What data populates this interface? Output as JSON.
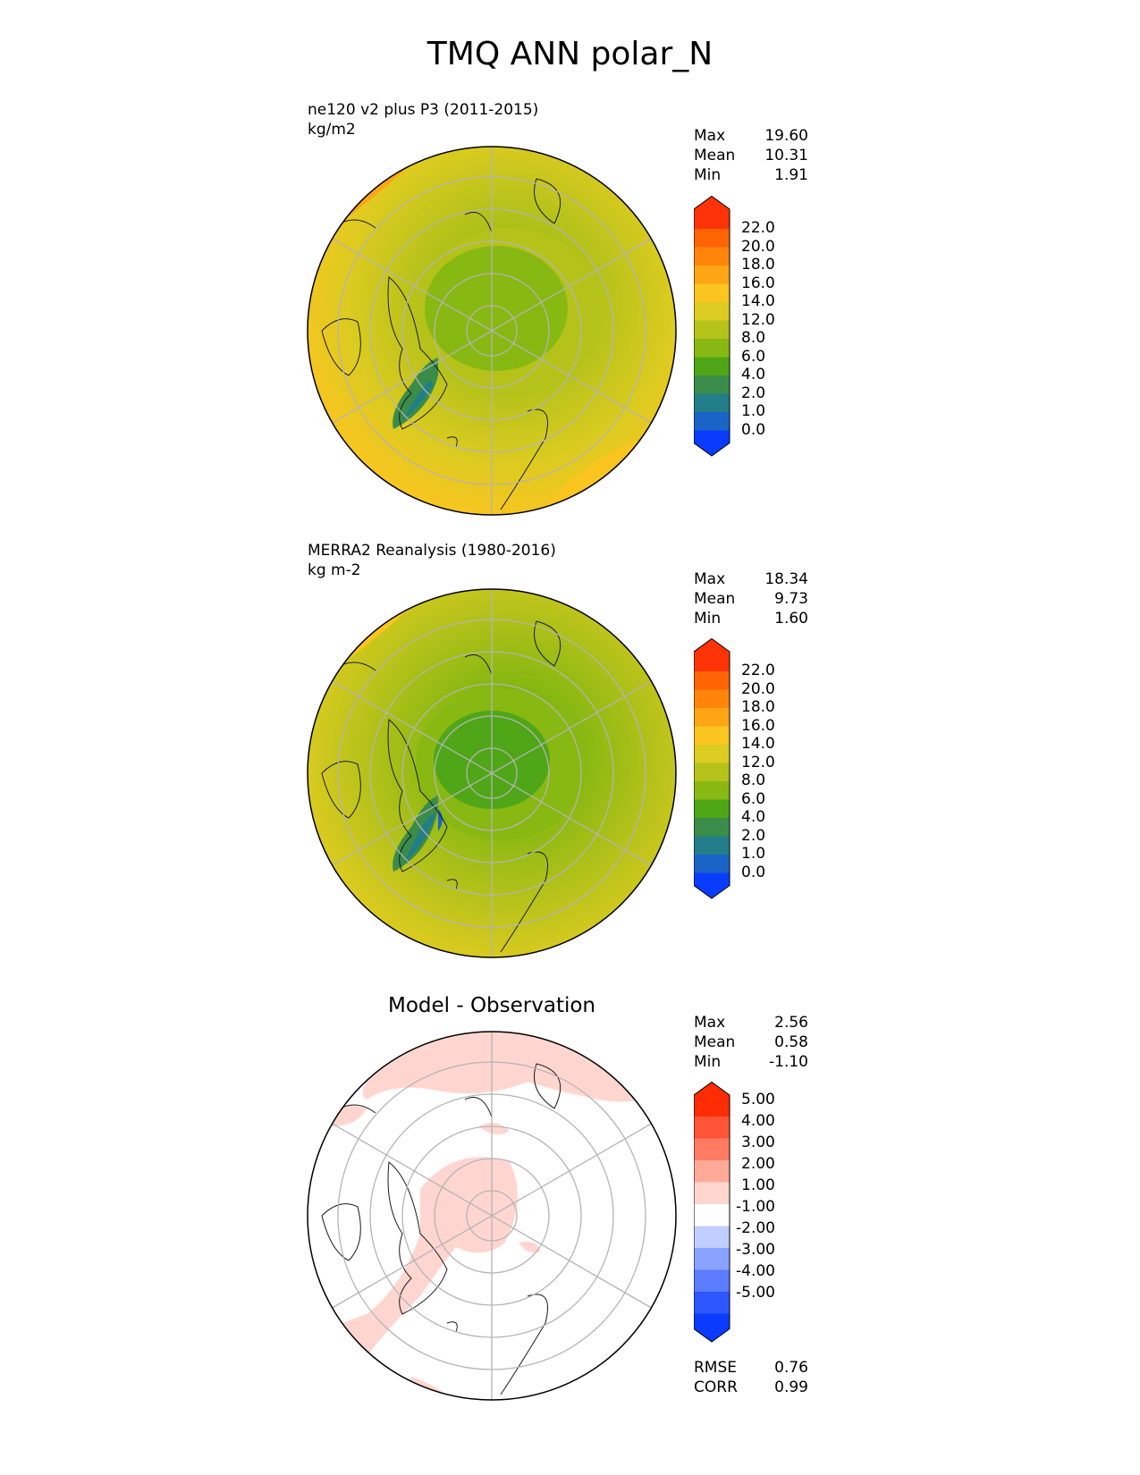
{
  "figure_title": "TMQ ANN polar_N",
  "panels": [
    {
      "title_line1": "ne120 v2 plus P3 (2011-2015)",
      "title_line2": "kg/m2",
      "stats": [
        {
          "label": "Max",
          "value": "19.60"
        },
        {
          "label": "Mean",
          "value": "10.31"
        },
        {
          "label": "Min",
          "value": "1.91"
        }
      ],
      "colorbar_labels": [
        "22.0",
        "20.0",
        "18.0",
        "16.0",
        "14.0",
        "12.0",
        "8.0",
        "6.0",
        "4.0",
        "2.0",
        "1.0",
        "0.0"
      ]
    },
    {
      "title_line1": "MERRA2 Reanalysis (1980-2016)",
      "title_line2": "kg m-2",
      "stats": [
        {
          "label": "Max",
          "value": "18.34"
        },
        {
          "label": "Mean",
          "value": "9.73"
        },
        {
          "label": "Min",
          "value": "1.60"
        }
      ],
      "colorbar_labels": [
        "22.0",
        "20.0",
        "18.0",
        "16.0",
        "14.0",
        "12.0",
        "8.0",
        "6.0",
        "4.0",
        "2.0",
        "1.0",
        "0.0"
      ]
    },
    {
      "title_center": "Model - Observation",
      "stats": [
        {
          "label": "Max",
          "value": "2.56"
        },
        {
          "label": "Mean",
          "value": "0.58"
        },
        {
          "label": "Min",
          "value": "-1.10"
        }
      ],
      "colorbar_labels": [
        "5.00",
        "4.00",
        "3.00",
        "2.00",
        "1.00",
        "-1.00",
        "-2.00",
        "-3.00",
        "-4.00",
        "-5.00"
      ],
      "metrics": [
        {
          "label": "RMSE",
          "value": "0.76"
        },
        {
          "label": "CORR",
          "value": "0.99"
        }
      ]
    }
  ],
  "colors": {
    "field_scale": [
      "#0a3cff",
      "#1a64c8",
      "#227e88",
      "#3a8c4a",
      "#4fa617",
      "#88b812",
      "#b5c21a",
      "#dccb20",
      "#fbc520",
      "#fda514",
      "#fe850a",
      "#fe6404",
      "#fe3408"
    ],
    "diff_scale": [
      "#0a3cff",
      "#2e56ff",
      "#5b7cff",
      "#8aa2ff",
      "#c2cdff",
      "#ffffff",
      "#ffd6cf",
      "#ffaa98",
      "#ff7c62",
      "#ff5436",
      "#ff2c05"
    ]
  }
}
